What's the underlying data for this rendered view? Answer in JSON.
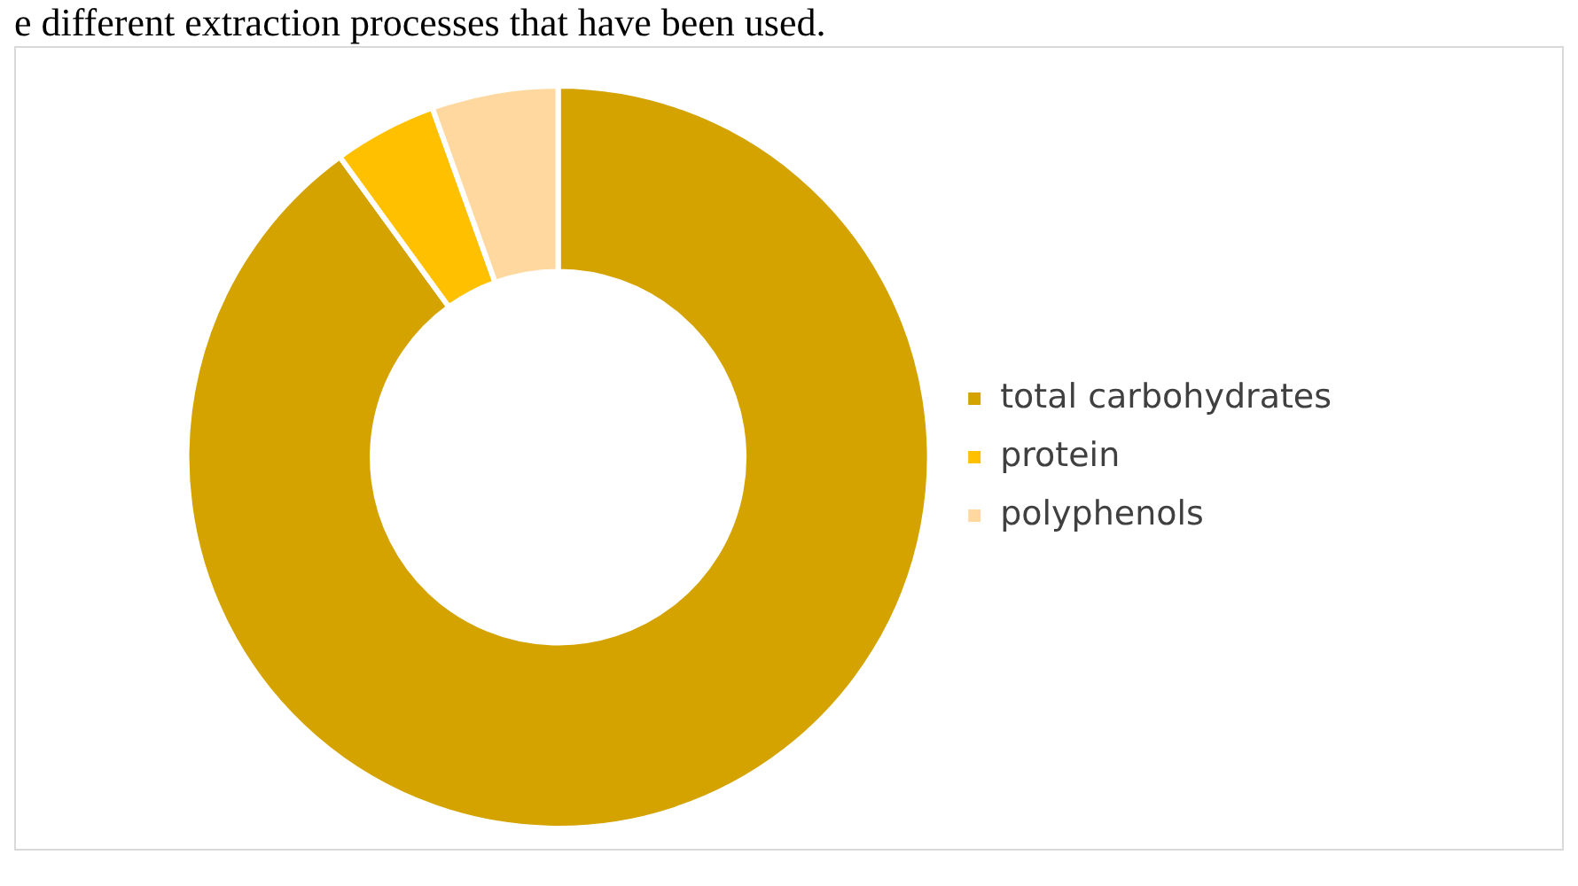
{
  "chart_data": {
    "type": "donut",
    "annotations": [
      "e different extraction processes that have been used."
    ],
    "categories": [
      "total carbohydrates",
      "protein",
      "polyphenols"
    ],
    "values": [
      90,
      4.5,
      5.5
    ],
    "colors": [
      "#d4a300",
      "#ffc000",
      "#ffd8a0"
    ],
    "legend": "right"
  }
}
